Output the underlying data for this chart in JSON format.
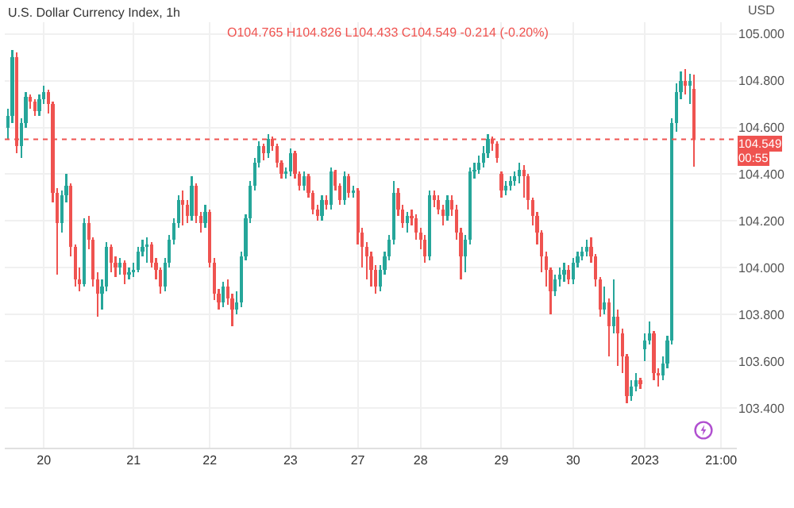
{
  "chart_data": {
    "type": "candlestick",
    "title": "U.S. Dollar Currency Index, 1h",
    "annotations": [
      "O104.765 H104.826 L104.433 C104.549 -0.214 (-0.20%)",
      "USD",
      "00:55"
    ],
    "categories": [
      null,
      null,
      null,
      null,
      null,
      null,
      null,
      null,
      "20",
      null,
      null,
      null,
      null,
      null,
      null,
      null,
      null,
      null,
      null,
      null,
      null,
      null,
      null,
      null,
      null,
      null,
      null,
      null,
      "21",
      null,
      null,
      null,
      null,
      null,
      null,
      null,
      null,
      null,
      null,
      null,
      null,
      null,
      null,
      null,
      null,
      "22",
      null,
      null,
      null,
      null,
      null,
      null,
      null,
      null,
      null,
      null,
      null,
      null,
      null,
      null,
      null,
      null,
      null,
      "23",
      null,
      null,
      null,
      null,
      null,
      null,
      null,
      null,
      null,
      null,
      null,
      null,
      null,
      null,
      "27",
      null,
      null,
      null,
      null,
      null,
      null,
      null,
      null,
      null,
      null,
      null,
      null,
      null,
      "28",
      null,
      null,
      null,
      null,
      null,
      null,
      null,
      null,
      null,
      null,
      null,
      null,
      null,
      null,
      null,
      null,
      null,
      "29",
      null,
      null,
      null,
      null,
      null,
      null,
      null,
      null,
      null,
      null,
      null,
      null,
      null,
      null,
      null,
      "30",
      null,
      null,
      null,
      null,
      null,
      null,
      null,
      null,
      null,
      null,
      null,
      null,
      null,
      null,
      null,
      "2023",
      null,
      null,
      null,
      null,
      null,
      null,
      null,
      null,
      null,
      null,
      null,
      null,
      null,
      null,
      null,
      null,
      "21:00",
      null,
      null,
      null
    ],
    "ohlc": [
      [
        104.6,
        104.68,
        104.55,
        104.65
      ],
      [
        104.65,
        104.93,
        104.62,
        104.9
      ],
      [
        104.9,
        104.92,
        104.49,
        104.52
      ],
      [
        104.52,
        104.64,
        104.47,
        104.62
      ],
      [
        104.62,
        104.75,
        104.6,
        104.73
      ],
      [
        104.73,
        104.74,
        104.68,
        104.71
      ],
      [
        104.71,
        104.72,
        104.65,
        104.67
      ],
      [
        104.67,
        104.74,
        104.65,
        104.72
      ],
      [
        104.72,
        104.78,
        104.7,
        104.75
      ],
      [
        104.75,
        104.76,
        104.66,
        104.7
      ],
      [
        104.7,
        104.71,
        104.28,
        104.32
      ],
      [
        104.32,
        104.34,
        103.97,
        104.19
      ],
      [
        104.19,
        104.33,
        104.15,
        104.31
      ],
      [
        104.31,
        104.4,
        104.28,
        104.35
      ],
      [
        104.35,
        104.36,
        104.05,
        104.09
      ],
      [
        104.09,
        104.1,
        103.92,
        103.95
      ],
      [
        103.95,
        104.0,
        103.9,
        103.93
      ],
      [
        103.93,
        104.21,
        103.92,
        104.19
      ],
      [
        104.19,
        104.22,
        104.08,
        104.12
      ],
      [
        104.12,
        104.13,
        103.92,
        103.95
      ],
      [
        103.95,
        103.98,
        103.79,
        103.89
      ],
      [
        103.89,
        103.95,
        103.82,
        103.92
      ],
      [
        103.92,
        104.11,
        103.9,
        104.09
      ],
      [
        104.09,
        104.1,
        103.98,
        104.02
      ],
      [
        104.02,
        104.05,
        103.96,
        104.0
      ],
      [
        104.0,
        104.04,
        103.97,
        104.02
      ],
      [
        104.02,
        104.03,
        103.93,
        103.97
      ],
      [
        103.97,
        104.0,
        103.95,
        103.98
      ],
      [
        103.98,
        104.02,
        103.96,
        103.99
      ],
      [
        103.99,
        104.09,
        103.98,
        104.07
      ],
      [
        104.07,
        104.12,
        104.05,
        104.09
      ],
      [
        104.09,
        104.13,
        104.02,
        104.1
      ],
      [
        104.1,
        104.11,
        104.0,
        104.02
      ],
      [
        104.02,
        104.04,
        103.95,
        103.99
      ],
      [
        103.99,
        104.0,
        103.89,
        103.92
      ],
      [
        103.92,
        104.04,
        103.9,
        104.02
      ],
      [
        104.02,
        104.14,
        104.0,
        104.12
      ],
      [
        104.12,
        104.21,
        104.1,
        104.19
      ],
      [
        104.19,
        104.31,
        104.17,
        104.29
      ],
      [
        104.29,
        104.33,
        104.18,
        104.27
      ],
      [
        104.27,
        104.29,
        104.19,
        104.22
      ],
      [
        104.22,
        104.39,
        104.2,
        104.35
      ],
      [
        104.35,
        104.36,
        104.19,
        104.22
      ],
      [
        104.22,
        104.24,
        104.15,
        104.19
      ],
      [
        104.19,
        104.27,
        104.17,
        104.24
      ],
      [
        104.24,
        104.25,
        104.0,
        104.02
      ],
      [
        104.02,
        104.04,
        103.86,
        103.89
      ],
      [
        103.89,
        103.91,
        103.82,
        103.85
      ],
      [
        103.85,
        103.94,
        103.83,
        103.92
      ],
      [
        103.92,
        103.95,
        103.84,
        103.87
      ],
      [
        103.87,
        103.89,
        103.75,
        103.82
      ],
      [
        103.82,
        103.9,
        103.8,
        103.85
      ],
      [
        103.85,
        104.07,
        103.83,
        104.05
      ],
      [
        104.05,
        104.23,
        104.03,
        104.21
      ],
      [
        104.21,
        104.37,
        104.19,
        104.35
      ],
      [
        104.35,
        104.47,
        104.33,
        104.45
      ],
      [
        104.45,
        104.54,
        104.43,
        104.52
      ],
      [
        104.52,
        104.53,
        104.46,
        104.49
      ],
      [
        104.49,
        104.57,
        104.47,
        104.55
      ],
      [
        104.55,
        104.56,
        104.5,
        104.52
      ],
      [
        104.52,
        104.53,
        104.43,
        104.45
      ],
      [
        104.45,
        104.46,
        104.38,
        104.4
      ],
      [
        104.4,
        104.43,
        104.38,
        104.41
      ],
      [
        104.41,
        104.51,
        104.39,
        104.49
      ],
      [
        104.49,
        104.5,
        104.38,
        104.4
      ],
      [
        104.4,
        104.41,
        104.33,
        104.35
      ],
      [
        104.35,
        104.41,
        104.33,
        104.39
      ],
      [
        104.39,
        104.4,
        104.3,
        104.32
      ],
      [
        104.32,
        104.33,
        104.23,
        104.25
      ],
      [
        104.25,
        104.27,
        104.2,
        104.22
      ],
      [
        104.22,
        104.31,
        104.2,
        104.29
      ],
      [
        104.29,
        104.31,
        104.25,
        104.27
      ],
      [
        104.27,
        104.43,
        104.25,
        104.41
      ],
      [
        104.41,
        104.42,
        104.33,
        104.35
      ],
      [
        104.35,
        104.36,
        104.27,
        104.29
      ],
      [
        104.29,
        104.41,
        104.27,
        104.39
      ],
      [
        104.39,
        104.4,
        104.3,
        104.32
      ],
      [
        104.32,
        104.35,
        104.3,
        104.33
      ],
      [
        104.33,
        104.34,
        104.1,
        104.15
      ],
      [
        104.15,
        104.17,
        104.0,
        104.09
      ],
      [
        104.09,
        104.11,
        103.95,
        104.05
      ],
      [
        104.05,
        104.07,
        103.92,
        103.99
      ],
      [
        103.99,
        104.01,
        103.89,
        103.92
      ],
      [
        103.92,
        104.01,
        103.9,
        103.99
      ],
      [
        103.99,
        104.07,
        103.97,
        104.05
      ],
      [
        104.05,
        104.14,
        104.03,
        104.12
      ],
      [
        104.12,
        104.37,
        104.1,
        104.32
      ],
      [
        104.32,
        104.34,
        104.22,
        104.25
      ],
      [
        104.25,
        104.27,
        104.17,
        104.19
      ],
      [
        104.19,
        104.24,
        104.15,
        104.22
      ],
      [
        104.22,
        104.25,
        104.18,
        104.21
      ],
      [
        104.21,
        104.23,
        104.12,
        104.15
      ],
      [
        104.15,
        104.17,
        104.08,
        104.12
      ],
      [
        104.12,
        104.14,
        104.02,
        104.05
      ],
      [
        104.05,
        104.33,
        104.03,
        104.31
      ],
      [
        104.31,
        104.33,
        104.26,
        104.29
      ],
      [
        104.29,
        104.31,
        104.23,
        104.25
      ],
      [
        104.25,
        104.27,
        104.18,
        104.22
      ],
      [
        104.22,
        104.31,
        104.2,
        104.29
      ],
      [
        104.29,
        104.31,
        104.22,
        104.25
      ],
      [
        104.25,
        104.27,
        104.12,
        104.15
      ],
      [
        104.15,
        104.17,
        103.95,
        104.05
      ],
      [
        104.05,
        104.14,
        103.98,
        104.12
      ],
      [
        104.12,
        104.43,
        104.1,
        104.41
      ],
      [
        104.41,
        104.45,
        104.38,
        104.42
      ],
      [
        104.42,
        104.48,
        104.4,
        104.45
      ],
      [
        104.45,
        104.52,
        104.43,
        104.49
      ],
      [
        104.49,
        104.57,
        104.47,
        104.55
      ],
      [
        104.55,
        104.56,
        104.5,
        104.53
      ],
      [
        104.53,
        104.54,
        104.45,
        104.47
      ],
      [
        104.4,
        104.41,
        104.3,
        104.33
      ],
      [
        104.33,
        104.37,
        104.31,
        104.35
      ],
      [
        104.35,
        104.39,
        104.33,
        104.37
      ],
      [
        104.37,
        104.41,
        104.35,
        104.39
      ],
      [
        104.39,
        104.45,
        104.36,
        104.42
      ],
      [
        104.42,
        104.44,
        104.3,
        104.39
      ],
      [
        104.39,
        104.4,
        104.25,
        104.29
      ],
      [
        104.29,
        104.3,
        104.18,
        104.22
      ],
      [
        104.22,
        104.24,
        104.1,
        104.15
      ],
      [
        104.15,
        104.16,
        103.98,
        104.05
      ],
      [
        104.05,
        104.07,
        103.92,
        103.99
      ],
      [
        103.99,
        104.0,
        103.8,
        103.9
      ],
      [
        103.9,
        103.97,
        103.88,
        103.95
      ],
      [
        103.95,
        104.0,
        103.92,
        103.97
      ],
      [
        103.97,
        104.02,
        103.94,
        103.99
      ],
      [
        103.99,
        104.01,
        103.93,
        103.95
      ],
      [
        103.95,
        104.04,
        103.93,
        104.02
      ],
      [
        104.02,
        104.07,
        104.0,
        104.05
      ],
      [
        104.05,
        104.09,
        104.03,
        104.07
      ],
      [
        104.07,
        104.12,
        104.05,
        104.09
      ],
      [
        104.09,
        104.13,
        104.02,
        104.05
      ],
      [
        104.05,
        104.06,
        103.92,
        103.95
      ],
      [
        103.95,
        103.96,
        103.79,
        103.82
      ],
      [
        103.82,
        103.92,
        103.8,
        103.85
      ],
      [
        103.85,
        103.87,
        103.62,
        103.75
      ],
      [
        103.75,
        103.95,
        103.72,
        103.79
      ],
      [
        103.79,
        103.82,
        103.58,
        103.72
      ],
      [
        103.72,
        103.74,
        103.55,
        103.62
      ],
      [
        103.62,
        103.63,
        103.42,
        103.45
      ],
      [
        103.45,
        103.52,
        103.43,
        103.49
      ],
      [
        103.49,
        103.55,
        103.47,
        103.52
      ],
      [
        103.52,
        103.53,
        103.48,
        103.5
      ],
      [
        103.65,
        103.72,
        103.6,
        103.69
      ],
      [
        103.69,
        103.77,
        103.67,
        103.72
      ],
      [
        103.72,
        103.73,
        103.52,
        103.55
      ],
      [
        103.55,
        103.57,
        103.49,
        103.54
      ],
      [
        103.54,
        103.62,
        103.52,
        103.59
      ],
      [
        103.59,
        103.71,
        103.57,
        103.69
      ],
      [
        103.69,
        104.64,
        103.67,
        104.62
      ],
      [
        104.62,
        104.79,
        104.58,
        104.75
      ],
      [
        104.75,
        104.84,
        104.72,
        104.8
      ],
      [
        104.8,
        104.85,
        104.74,
        104.78
      ],
      [
        104.78,
        104.83,
        104.7,
        104.8
      ],
      [
        104.765,
        104.826,
        104.433,
        104.549
      ],
      null,
      null,
      null,
      null,
      null,
      null,
      null,
      null,
      null
    ],
    "colors": [
      "#26a69a",
      "#26a69a",
      "#ef5350",
      "#26a69a",
      "#26a69a",
      "#ef5350",
      "#ef5350",
      "#26a69a",
      "#26a69a",
      "#ef5350",
      "#ef5350",
      "#ef5350",
      "#26a69a",
      "#26a69a",
      "#ef5350",
      "#ef5350",
      "#ef5350",
      "#26a69a",
      "#ef5350",
      "#ef5350",
      "#ef5350",
      "#26a69a",
      "#26a69a",
      "#ef5350",
      "#ef5350",
      "#26a69a",
      "#ef5350",
      "#26a69a",
      "#26a69a",
      "#26a69a",
      "#26a69a",
      "#26a69a",
      "#ef5350",
      "#ef5350",
      "#ef5350",
      "#26a69a",
      "#26a69a",
      "#26a69a",
      "#26a69a",
      "#ef5350",
      "#ef5350",
      "#26a69a",
      "#ef5350",
      "#ef5350",
      "#26a69a",
      "#ef5350",
      "#ef5350",
      "#ef5350",
      "#26a69a",
      "#ef5350",
      "#ef5350",
      "#26a69a",
      "#26a69a",
      "#26a69a",
      "#26a69a",
      "#26a69a",
      "#26a69a",
      "#ef5350",
      "#26a69a",
      "#ef5350",
      "#ef5350",
      "#ef5350",
      "#26a69a",
      "#26a69a",
      "#ef5350",
      "#ef5350",
      "#26a69a",
      "#ef5350",
      "#ef5350",
      "#ef5350",
      "#26a69a",
      "#ef5350",
      "#26a69a",
      "#ef5350",
      "#ef5350",
      "#26a69a",
      "#ef5350",
      "#26a69a",
      "#ef5350",
      "#ef5350",
      "#ef5350",
      "#ef5350",
      "#ef5350",
      "#26a69a",
      "#26a69a",
      "#26a69a",
      "#26a69a",
      "#ef5350",
      "#ef5350",
      "#26a69a",
      "#ef5350",
      "#ef5350",
      "#ef5350",
      "#ef5350",
      "#26a69a",
      "#ef5350",
      "#ef5350",
      "#ef5350",
      "#26a69a",
      "#ef5350",
      "#ef5350",
      "#ef5350",
      "#26a69a",
      "#26a69a",
      "#26a69a",
      "#26a69a",
      "#26a69a",
      "#26a69a",
      "#ef5350",
      "#ef5350",
      "#ef5350",
      "#26a69a",
      "#26a69a",
      "#26a69a",
      "#26a69a",
      "#ef5350",
      "#ef5350",
      "#ef5350",
      "#ef5350",
      "#ef5350",
      "#ef5350",
      "#ef5350",
      "#26a69a",
      "#26a69a",
      "#26a69a",
      "#ef5350",
      "#26a69a",
      "#26a69a",
      "#26a69a",
      "#26a69a",
      "#ef5350",
      "#ef5350",
      "#ef5350",
      "#26a69a",
      "#ef5350",
      "#26a69a",
      "#ef5350",
      "#ef5350",
      "#ef5350",
      "#26a69a",
      "#26a69a",
      "#ef5350",
      "#26a69a",
      "#26a69a",
      "#ef5350",
      "#ef5350",
      "#26a69a",
      "#26a69a",
      "#26a69a",
      "#26a69a",
      "#26a69a",
      "#ef5350",
      "#26a69a",
      "#ef5350",
      null,
      null,
      null,
      null,
      null,
      null,
      null,
      null,
      null
    ],
    "ylim": [
      103.23,
      105.05
    ],
    "yticks": [
      {
        "value": 103.4,
        "label": "103.400"
      },
      {
        "value": 103.6,
        "label": "103.600"
      },
      {
        "value": 103.8,
        "label": "103.800"
      },
      {
        "value": 104,
        "label": "104.000"
      },
      {
        "value": 104.2,
        "label": "104.200"
      },
      {
        "value": 104.4,
        "label": "104.400"
      },
      {
        "value": 104.6,
        "label": "104.600"
      },
      {
        "value": 104.8,
        "label": "104.800"
      },
      {
        "value": 105,
        "label": "105.000"
      }
    ],
    "ref_lines": [
      {
        "axis": "y",
        "value": 104.549,
        "label": "104.549",
        "color": "#ef5350",
        "line_style": "dotted"
      }
    ],
    "grid": true
  }
}
